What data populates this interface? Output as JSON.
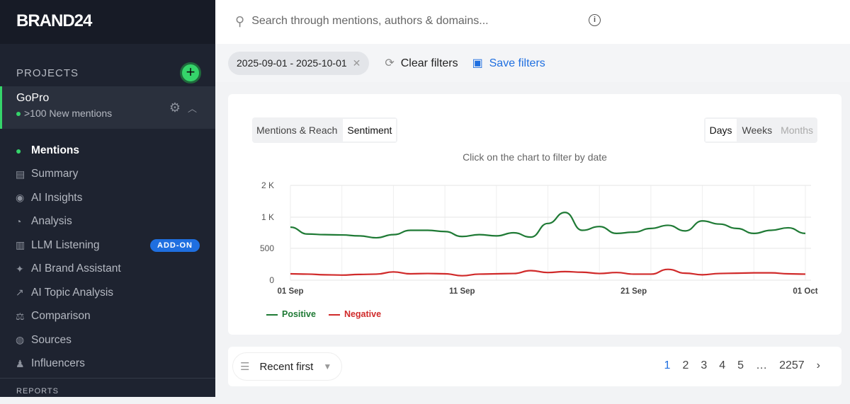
{
  "brand": "BRAND24",
  "sidebar": {
    "projects_label": "PROJECTS",
    "project": {
      "name": "GoPro",
      "status": ">100 New mentions"
    },
    "items": [
      {
        "label": "Mentions",
        "icon": "chat-icon",
        "g": "●"
      },
      {
        "label": "Summary",
        "icon": "document-icon",
        "g": "▤"
      },
      {
        "label": "AI Insights",
        "icon": "search-insight-icon",
        "g": "◉"
      },
      {
        "label": "Analysis",
        "icon": "pie-chart-icon",
        "g": "◔"
      },
      {
        "label": "LLM Listening",
        "icon": "bar-chart-icon",
        "g": "▥",
        "badge": "ADD-ON"
      },
      {
        "label": "AI Brand Assistant",
        "icon": "sparkle-icon",
        "g": "✦"
      },
      {
        "label": "AI Topic Analysis",
        "icon": "line-chart-icon",
        "g": "↗"
      },
      {
        "label": "Comparison",
        "icon": "scale-icon",
        "g": "⚖"
      },
      {
        "label": "Sources",
        "icon": "globe-icon",
        "g": "◍"
      },
      {
        "label": "Influencers",
        "icon": "person-icon",
        "g": "♟"
      }
    ],
    "reports_label": "REPORTS"
  },
  "search": {
    "placeholder": "Search through mentions, authors & domains..."
  },
  "filters": {
    "date_range": "2025-09-01 - 2025-10-01",
    "clear": "Clear filters",
    "save": "Save filters"
  },
  "chart_tabs": [
    "Mentions & Reach",
    "Sentiment"
  ],
  "period_tabs": [
    "Days",
    "Weeks",
    "Months"
  ],
  "hint": "Click on the chart to filter by date",
  "colors": {
    "positive": "#1f7a35",
    "negative": "#d02a2a",
    "accent": "#1f6fe0",
    "green": "#35d46a"
  },
  "chart_data": {
    "type": "line",
    "x_labels": [
      "01 Sep",
      "11 Sep",
      "21 Sep",
      "01 Oct"
    ],
    "y_ticks": [
      "0",
      "500",
      "1 K",
      "2 K"
    ],
    "y_tick_values": [
      0,
      500,
      1000,
      2000
    ],
    "series": [
      {
        "name": "Positive",
        "values": [
          840,
          730,
          720,
          715,
          700,
          670,
          720,
          790,
          790,
          770,
          690,
          720,
          700,
          750,
          680,
          900,
          1150,
          790,
          850,
          740,
          760,
          820,
          870,
          780,
          940,
          890,
          820,
          740,
          790,
          830,
          740
        ]
      },
      {
        "name": "Negative",
        "values": [
          100,
          95,
          85,
          80,
          90,
          95,
          130,
          100,
          105,
          100,
          70,
          95,
          100,
          105,
          150,
          120,
          135,
          125,
          105,
          120,
          95,
          95,
          170,
          110,
          85,
          105,
          110,
          115,
          115,
          100,
          95
        ]
      }
    ]
  },
  "sort": {
    "label": "Recent first"
  },
  "pagination": {
    "pages": [
      "1",
      "2",
      "3",
      "4",
      "5",
      "…",
      "2257"
    ],
    "current": "1"
  }
}
